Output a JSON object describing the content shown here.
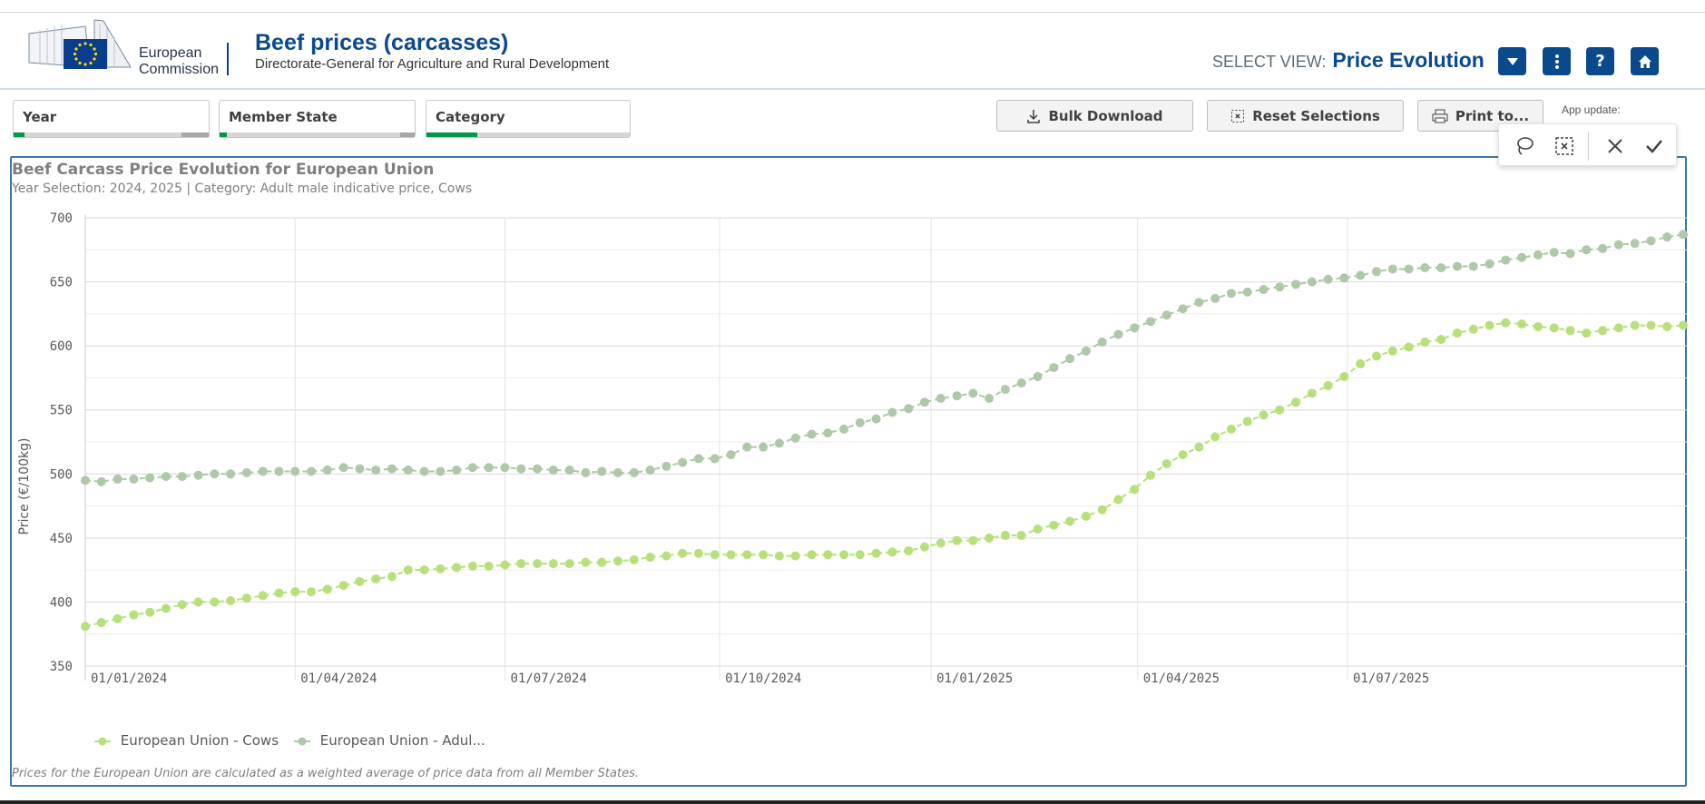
{
  "header": {
    "logo_line1": "European",
    "logo_line2": "Commission",
    "title": "Beef prices (carcasses)",
    "subtitle": "Directorate-General for Agriculture and Rural Development",
    "select_view_label": "SELECT VIEW:",
    "select_view_value": "Price Evolution",
    "icons": [
      "chevron-down-icon",
      "more-vertical-icon",
      "help-icon",
      "home-icon"
    ]
  },
  "filters": [
    {
      "label": "Year"
    },
    {
      "label": "Member State"
    },
    {
      "label": "Category"
    }
  ],
  "toolbar": {
    "bulk_download": "Bulk Download",
    "reset_selections": "Reset Selections",
    "print": "Print to...",
    "app_update": "App update:"
  },
  "selection_toolbar": {
    "icons": [
      "lasso-icon",
      "clear-selection-icon",
      "cancel-icon",
      "confirm-icon"
    ]
  },
  "chart": {
    "title": "Beef Carcass Price Evolution for European Union",
    "subtitle": "Year Selection: 2024, 2025 | Category: Adult male indicative price, Cows",
    "footnote": "Prices for the European Union are calculated as a weighted average of price data from all Member States.",
    "legend": [
      "European Union - Cows",
      "European Union - Adul..."
    ]
  },
  "colors": {
    "brand_blue": "#0a4a8c",
    "cows_series": "#b7e07a",
    "adult_male_series": "#aec8a8",
    "panel_border": "#3b78a8",
    "filter_green": "#009845"
  },
  "chart_data": {
    "type": "line",
    "title": "Beef Carcass Price Evolution for European Union",
    "xlabel": "",
    "ylabel": "Price (€/100kg)",
    "ylim": [
      350,
      700
    ],
    "y_ticks": [
      350,
      400,
      450,
      500,
      550,
      600,
      650,
      700
    ],
    "x_tick_labels": [
      "01/01/2024",
      "01/04/2024",
      "01/07/2024",
      "01/10/2024",
      "01/01/2025",
      "01/04/2025",
      "01/07/2025"
    ],
    "x_start": "01/01/2024",
    "x_end": "01/09/2025",
    "x_step": "weekly",
    "grid": true,
    "legend_position": "bottom-left",
    "series": [
      {
        "name": "European Union - Cows",
        "values": [
          381,
          384,
          387,
          390,
          392,
          395,
          398,
          400,
          400,
          401,
          403,
          405,
          407,
          408,
          408,
          410,
          413,
          416,
          418,
          420,
          425,
          425,
          426,
          427,
          428,
          428,
          429,
          430,
          430,
          430,
          430,
          431,
          431,
          432,
          433,
          435,
          436,
          438,
          438,
          437,
          437,
          437,
          437,
          436,
          436,
          437,
          437,
          437,
          437,
          438,
          439,
          440,
          443,
          446,
          448,
          448,
          450,
          452,
          452,
          457,
          460,
          463,
          467,
          472,
          480,
          488,
          499,
          508,
          515,
          521,
          529,
          535,
          541,
          546,
          550,
          556,
          563,
          569,
          576,
          586,
          592,
          596,
          599,
          603,
          605,
          610,
          613,
          616,
          618,
          617,
          615,
          614,
          612,
          610,
          612,
          614,
          616,
          616,
          615,
          616
        ]
      },
      {
        "name": "European Union - Adul...",
        "values": [
          495,
          494,
          496,
          496,
          497,
          498,
          498,
          499,
          500,
          500,
          501,
          502,
          502,
          502,
          502,
          503,
          505,
          504,
          503,
          504,
          503,
          502,
          502,
          503,
          505,
          505,
          505,
          504,
          504,
          503,
          503,
          501,
          502,
          501,
          501,
          503,
          506,
          509,
          512,
          512,
          515,
          521,
          521,
          524,
          528,
          531,
          532,
          535,
          540,
          543,
          548,
          551,
          556,
          559,
          561,
          563,
          559,
          566,
          571,
          576,
          583,
          590,
          596,
          603,
          609,
          614,
          619,
          624,
          629,
          634,
          637,
          641,
          642,
          644,
          646,
          648,
          650,
          652,
          653,
          655,
          658,
          660,
          660,
          661,
          661,
          662,
          662,
          664,
          667,
          669,
          671,
          673,
          672,
          675,
          676,
          679,
          680,
          682,
          685,
          687
        ]
      }
    ]
  }
}
